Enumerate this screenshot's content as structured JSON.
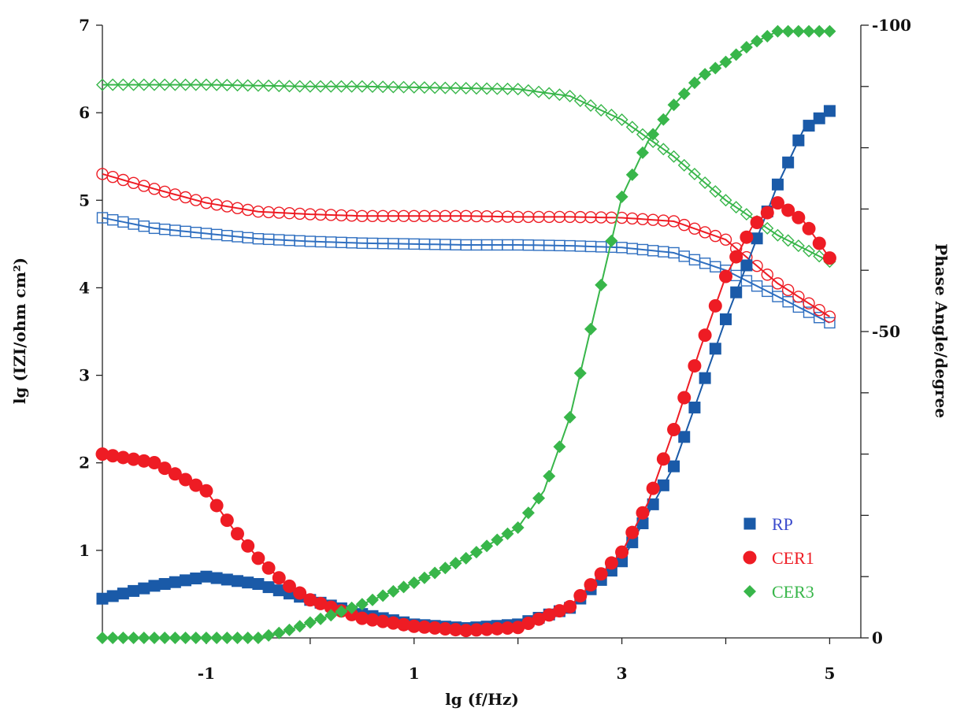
{
  "chart_data": {
    "type": "line",
    "xlabel": "lg (f/Hz)",
    "ylabel": "lg (IZI/ohm cm²)",
    "y2label": "Phase Angle/degree",
    "xlim": [
      -2,
      5.3
    ],
    "ylim": [
      0,
      7
    ],
    "y2lim": [
      0,
      -100
    ],
    "xticks": [
      "-1",
      "1",
      "3",
      "5"
    ],
    "xtick_values": [
      -1,
      1,
      3,
      5
    ],
    "yticks": [
      "1",
      "2",
      "3",
      "4",
      "5",
      "6",
      "7"
    ],
    "ytick_values": [
      1,
      2,
      3,
      4,
      5,
      6,
      7
    ],
    "y2ticks": [
      "-100",
      "-50",
      "0"
    ],
    "y2tick_values": [
      -100,
      -50,
      0
    ],
    "legend_position": "bottom-right",
    "series": [
      {
        "name": "RP",
        "quantity": "modulus",
        "axis": "left",
        "color": "#2f6fc0",
        "marker": "square-open",
        "x": [
          -2,
          -1.5,
          -1,
          -0.5,
          0,
          0.5,
          1,
          1.5,
          2,
          2.5,
          3,
          3.5,
          4,
          4.5,
          5
        ],
        "y": [
          4.8,
          4.68,
          4.62,
          4.56,
          4.53,
          4.51,
          4.5,
          4.49,
          4.49,
          4.48,
          4.46,
          4.4,
          4.2,
          3.9,
          3.6
        ]
      },
      {
        "name": "CER1",
        "quantity": "modulus",
        "axis": "left",
        "color": "#ee1c24",
        "marker": "circle-open",
        "x": [
          -2,
          -1.5,
          -1,
          -0.5,
          0,
          0.5,
          1,
          1.5,
          2,
          2.5,
          3,
          3.5,
          4,
          4.5,
          5
        ],
        "y": [
          5.3,
          5.13,
          4.97,
          4.87,
          4.84,
          4.82,
          4.82,
          4.82,
          4.81,
          4.81,
          4.8,
          4.76,
          4.55,
          4.05,
          3.67
        ]
      },
      {
        "name": "CER3",
        "quantity": "modulus",
        "axis": "left",
        "color": "#38b64a",
        "marker": "diamond-open",
        "x": [
          -2,
          -1.5,
          -1,
          -0.5,
          0,
          0.5,
          1,
          1.5,
          2,
          2.5,
          3,
          3.5,
          4,
          4.5,
          5
        ],
        "y": [
          6.32,
          6.32,
          6.32,
          6.31,
          6.3,
          6.3,
          6.29,
          6.28,
          6.27,
          6.19,
          5.92,
          5.5,
          5.0,
          4.6,
          4.3
        ]
      },
      {
        "name": "RP",
        "quantity": "phase",
        "axis": "right",
        "color": "#1a5aa8",
        "marker": "square-filled",
        "x": [
          -2,
          -1.5,
          -1,
          -0.5,
          0,
          0.5,
          1,
          1.5,
          2,
          2.5,
          3,
          3.5,
          3.75,
          4,
          4.25,
          4.5,
          4.75,
          5
        ],
        "y": [
          -6.4,
          -8.5,
          -10,
          -8.8,
          -6.2,
          -3.9,
          -2.2,
          -1.6,
          -2.2,
          -4.9,
          -12.5,
          -28,
          -40,
          -52,
          -63,
          -74,
          -83,
          -86
        ]
      },
      {
        "name": "CER1",
        "quantity": "phase",
        "axis": "right",
        "color": "#ee1c24",
        "marker": "circle-filled",
        "x": [
          -2,
          -1.5,
          -1,
          -0.75,
          -0.5,
          -0.25,
          0,
          0.5,
          1,
          1.5,
          2,
          2.5,
          3,
          3.25,
          3.5,
          3.75,
          4,
          4.25,
          4.5,
          4.75,
          5
        ],
        "y": [
          -30,
          -28.6,
          -24,
          -18,
          -13,
          -9,
          -6.2,
          -3.2,
          -1.9,
          -1.2,
          -1.7,
          -5.1,
          -14,
          -22,
          -34,
          -47,
          -59,
          -67,
          -71,
          -68,
          -62
        ]
      },
      {
        "name": "CER3",
        "quantity": "phase",
        "axis": "right",
        "color": "#38b64a",
        "marker": "diamond-filled",
        "x": [
          -2,
          -1.5,
          -1,
          -0.5,
          -0.25,
          0,
          0.5,
          1,
          1.5,
          2,
          2.25,
          2.5,
          2.75,
          3,
          3.25,
          3.5,
          3.75,
          4,
          4.25,
          4.5,
          5
        ],
        "y": [
          0,
          0,
          0,
          0,
          -1,
          -2.5,
          -5.5,
          -9,
          -13,
          -18,
          -24,
          -36,
          -54,
          -72,
          -81,
          -87,
          -91.5,
          -94,
          -97,
          -99,
          -99
        ]
      }
    ],
    "legend": [
      {
        "label": "RP",
        "color": "#1a5aa8",
        "text_color": "#3b4bcc",
        "marker": "square-filled"
      },
      {
        "label": "CER1",
        "color": "#ee1c24",
        "text_color": "#ee1c24",
        "marker": "circle-filled"
      },
      {
        "label": "CER3",
        "color": "#38b64a",
        "text_color": "#38b64a",
        "marker": "diamond-filled"
      }
    ]
  }
}
